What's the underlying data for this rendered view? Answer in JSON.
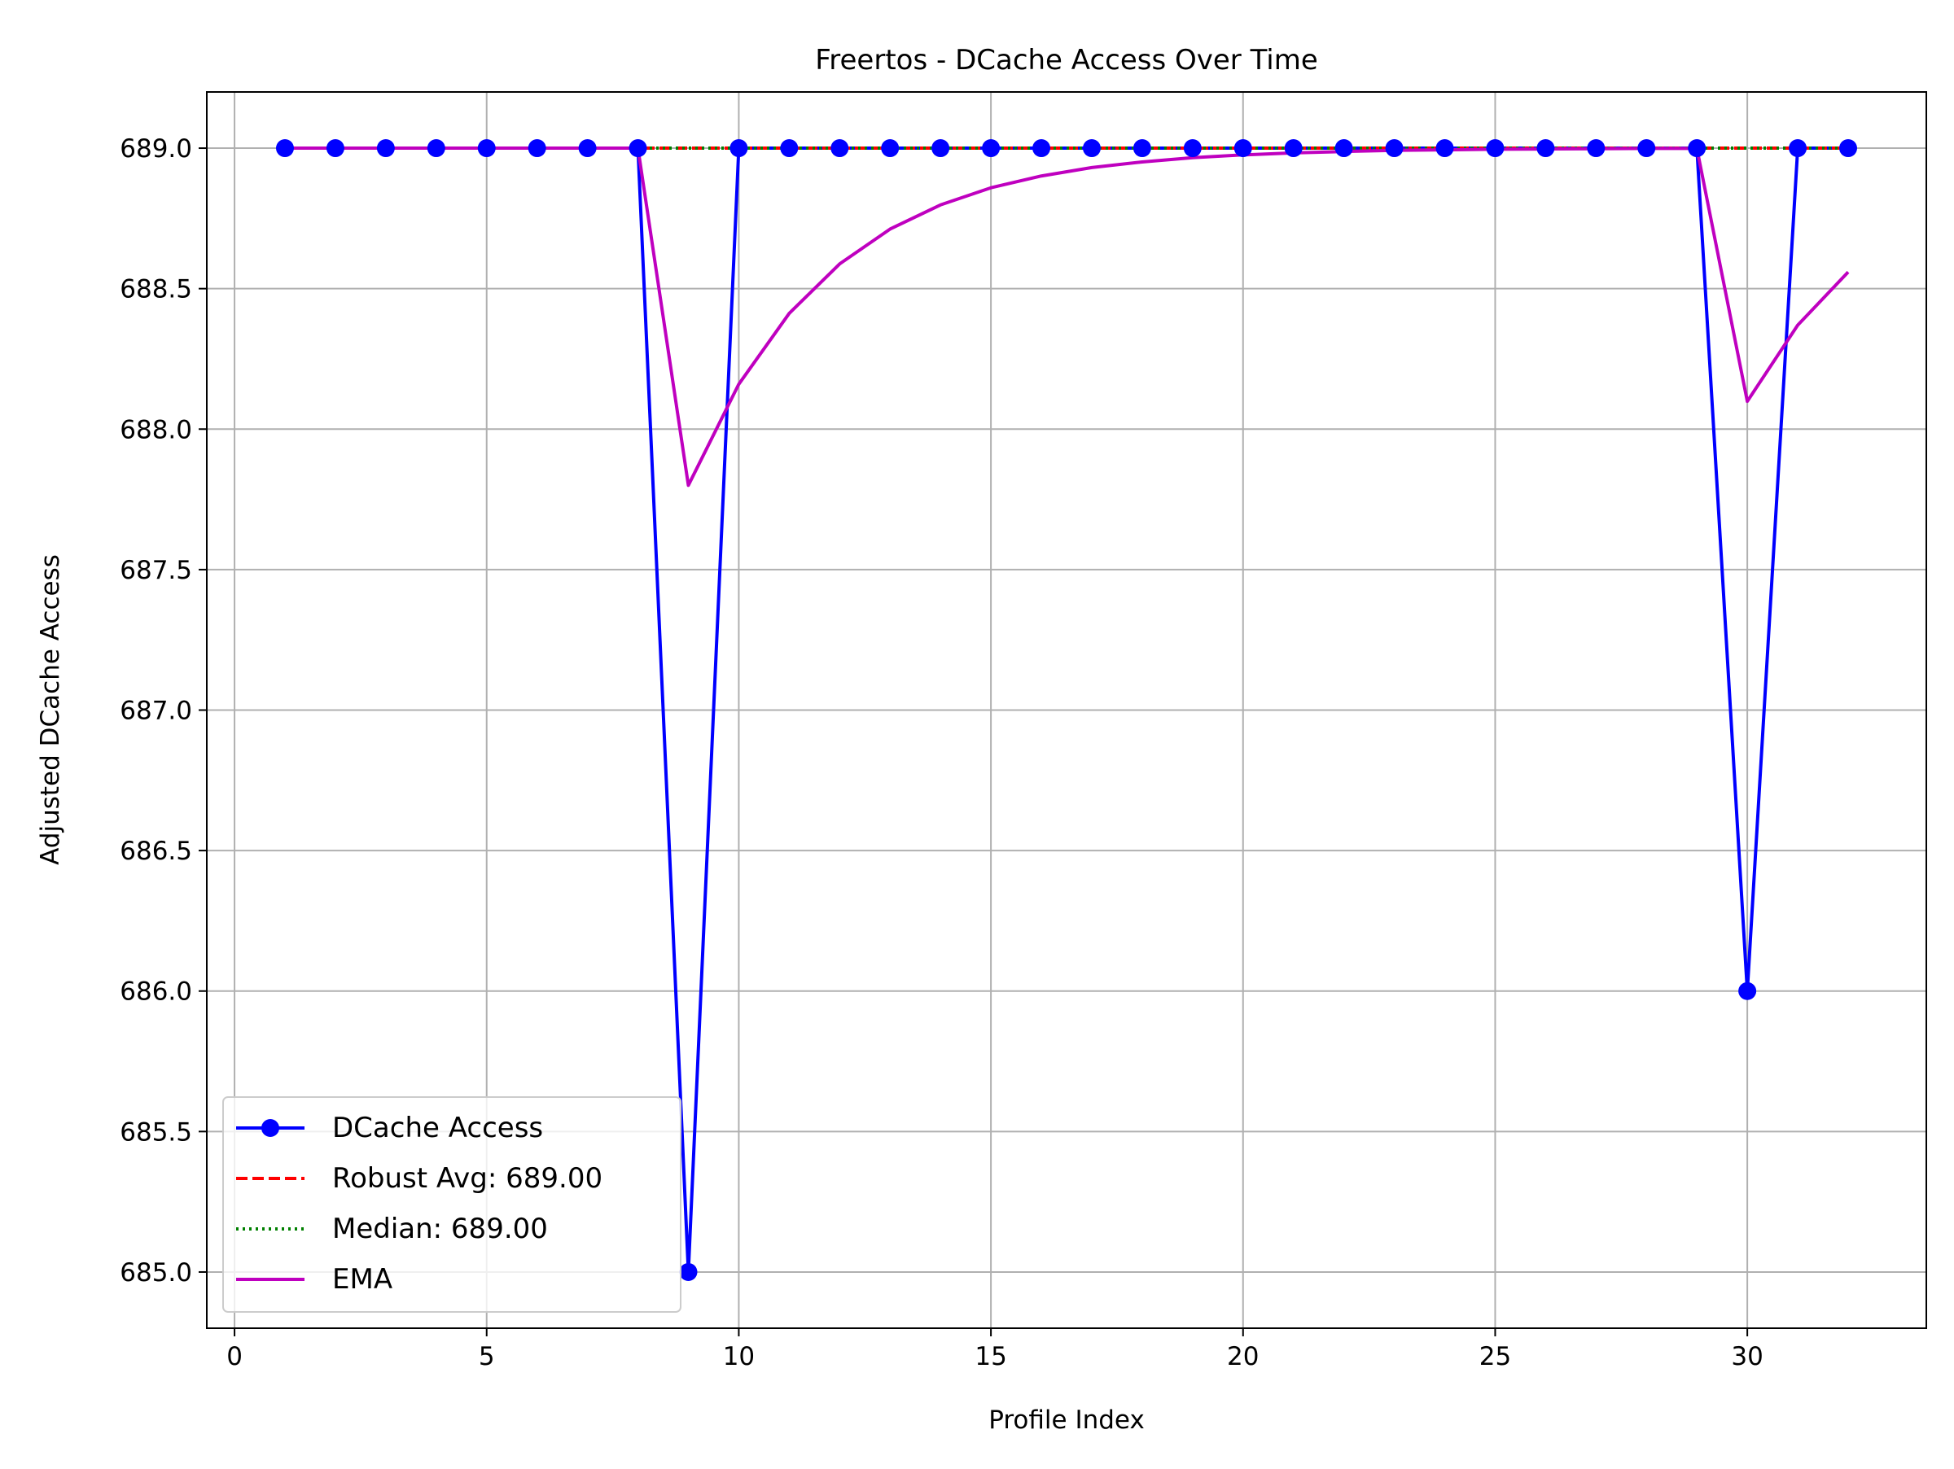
{
  "chart_data": {
    "type": "line",
    "title": "Freertos - DCache Access Over Time",
    "xlabel": "Profile Index",
    "ylabel": "Adjusted DCache Access",
    "xlim": [
      -0.55,
      33.55
    ],
    "ylim": [
      684.8,
      689.2
    ],
    "xticks": [
      0,
      5,
      10,
      15,
      20,
      25,
      30
    ],
    "xtick_labels": [
      "0",
      "5",
      "10",
      "15",
      "20",
      "25",
      "30"
    ],
    "yticks": [
      685.0,
      685.5,
      686.0,
      686.5,
      687.0,
      687.5,
      688.0,
      688.5,
      689.0
    ],
    "ytick_labels": [
      "685.0",
      "685.5",
      "686.0",
      "686.5",
      "687.0",
      "687.5",
      "688.0",
      "688.5",
      "689.0"
    ],
    "grid": true,
    "legend_position": "lower-left",
    "x": [
      1,
      2,
      3,
      4,
      5,
      6,
      7,
      8,
      9,
      10,
      11,
      12,
      13,
      14,
      15,
      16,
      17,
      18,
      19,
      20,
      21,
      22,
      23,
      24,
      25,
      26,
      27,
      28,
      29,
      30,
      31,
      32
    ],
    "series": [
      {
        "name": "DCache Access",
        "style": "solid-with-markers",
        "color": "#0000ff",
        "values": [
          689,
          689,
          689,
          689,
          689,
          689,
          689,
          689,
          685,
          689,
          689,
          689,
          689,
          689,
          689,
          689,
          689,
          689,
          689,
          689,
          689,
          689,
          689,
          689,
          689,
          689,
          689,
          689,
          689,
          686,
          689,
          689
        ]
      },
      {
        "name": "Robust Avg: 689.00",
        "style": "dashed",
        "color": "#ff0000",
        "values": [
          689,
          689,
          689,
          689,
          689,
          689,
          689,
          689,
          689,
          689,
          689,
          689,
          689,
          689,
          689,
          689,
          689,
          689,
          689,
          689,
          689,
          689,
          689,
          689,
          689,
          689,
          689,
          689,
          689,
          689,
          689,
          689
        ]
      },
      {
        "name": "Median: 689.00",
        "style": "dotted",
        "color": "#008000",
        "values": [
          689,
          689,
          689,
          689,
          689,
          689,
          689,
          689,
          689,
          689,
          689,
          689,
          689,
          689,
          689,
          689,
          689,
          689,
          689,
          689,
          689,
          689,
          689,
          689,
          689,
          689,
          689,
          689,
          689,
          689,
          689,
          689
        ]
      },
      {
        "name": "EMA",
        "style": "solid",
        "color": "#bf00bf",
        "values": [
          689,
          689,
          689,
          689,
          689,
          689,
          689,
          689,
          687.8,
          688.16,
          688.412,
          688.588,
          688.712,
          688.798,
          688.859,
          688.901,
          688.931,
          688.951,
          688.966,
          688.976,
          688.983,
          688.988,
          688.992,
          688.994,
          688.996,
          688.997,
          688.998,
          688.999,
          688.999,
          688.099,
          688.37,
          688.559
        ]
      }
    ]
  }
}
